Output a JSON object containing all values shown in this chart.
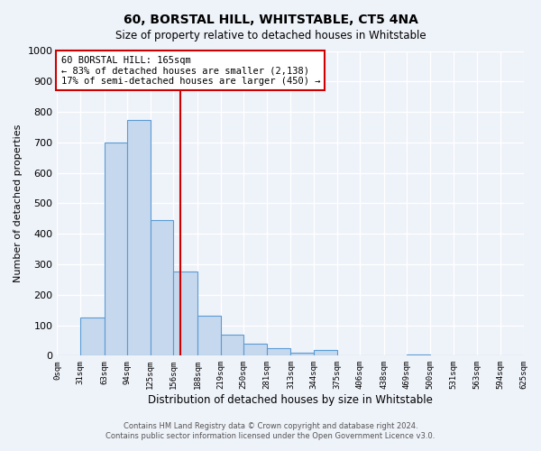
{
  "title": "60, BORSTAL HILL, WHITSTABLE, CT5 4NA",
  "subtitle": "Size of property relative to detached houses in Whitstable",
  "xlabel": "Distribution of detached houses by size in Whitstable",
  "ylabel": "Number of detached properties",
  "bin_edges": [
    0,
    31,
    63,
    94,
    125,
    156,
    188,
    219,
    250,
    281,
    313,
    344,
    375,
    406,
    438,
    469,
    500,
    531,
    563,
    594,
    625
  ],
  "bar_heights": [
    0,
    125,
    700,
    775,
    445,
    275,
    130,
    68,
    40,
    25,
    10,
    18,
    0,
    0,
    0,
    5,
    0,
    0,
    0,
    0
  ],
  "bar_color": "#c5d8ed",
  "bar_edge_color": "#5b9bd5",
  "vline_x": 165,
  "vline_color": "#cc0000",
  "annotation_title": "60 BORSTAL HILL: 165sqm",
  "annotation_line1": "← 83% of detached houses are smaller (2,138)",
  "annotation_line2": "17% of semi-detached houses are larger (450) →",
  "annotation_box_color": "white",
  "annotation_box_edge": "#cc0000",
  "ylim": [
    0,
    1000
  ],
  "xlim_min": 0,
  "xlim_max": 625,
  "tick_labels": [
    "0sqm",
    "31sqm",
    "63sqm",
    "94sqm",
    "125sqm",
    "156sqm",
    "188sqm",
    "219sqm",
    "250sqm",
    "281sqm",
    "313sqm",
    "344sqm",
    "375sqm",
    "406sqm",
    "438sqm",
    "469sqm",
    "500sqm",
    "531sqm",
    "563sqm",
    "594sqm",
    "625sqm"
  ],
  "yticks": [
    0,
    100,
    200,
    300,
    400,
    500,
    600,
    700,
    800,
    900,
    1000
  ],
  "footer1": "Contains HM Land Registry data © Crown copyright and database right 2024.",
  "footer2": "Contains public sector information licensed under the Open Government Licence v3.0.",
  "background_color": "#eef2f9",
  "grid_color": "white"
}
